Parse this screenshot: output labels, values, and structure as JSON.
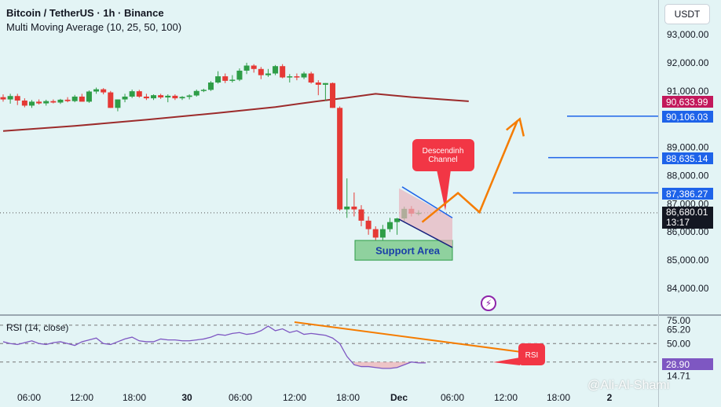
{
  "header": {
    "title": "Bitcoin / TetherUS · 1h · Binance",
    "indicator": "Multi Moving Average (10, 25, 50, 100)",
    "currency_button": "USDT"
  },
  "watermark": "@Ali-Al-Shami",
  "chart_data": [
    {
      "type": "candlestick",
      "title": "Bitcoin / TetherUS · 1h · Binance",
      "ylim": [
        83500,
        93700
      ],
      "y_ticks": [
        "93,000.00",
        "92,000.00",
        "91,000.00",
        "89,000.00",
        "88,000.00",
        "87,000.00",
        "86,000.00",
        "85,000.00",
        "84,000.00"
      ],
      "x_ticks": [
        "06:00",
        "12:00",
        "18:00",
        "30",
        "06:00",
        "12:00",
        "18:00",
        "Dec",
        "06:00",
        "12:00",
        "18:00",
        "2"
      ],
      "candles": [
        {
          "o": 90780,
          "h": 90880,
          "l": 90620,
          "c": 90700
        },
        {
          "o": 90700,
          "h": 90900,
          "l": 90550,
          "c": 90820
        },
        {
          "o": 90820,
          "h": 90900,
          "l": 90500,
          "c": 90660
        },
        {
          "o": 90660,
          "h": 90740,
          "l": 90420,
          "c": 90480
        },
        {
          "o": 90480,
          "h": 90680,
          "l": 90400,
          "c": 90620
        },
        {
          "o": 90620,
          "h": 90700,
          "l": 90520,
          "c": 90560
        },
        {
          "o": 90560,
          "h": 90690,
          "l": 90480,
          "c": 90640
        },
        {
          "o": 90640,
          "h": 90700,
          "l": 90560,
          "c": 90590
        },
        {
          "o": 90590,
          "h": 90720,
          "l": 90540,
          "c": 90690
        },
        {
          "o": 90690,
          "h": 90780,
          "l": 90600,
          "c": 90640
        },
        {
          "o": 90640,
          "h": 90860,
          "l": 90600,
          "c": 90800
        },
        {
          "o": 90800,
          "h": 90900,
          "l": 90680,
          "c": 90620
        },
        {
          "o": 90620,
          "h": 91020,
          "l": 90580,
          "c": 90980
        },
        {
          "o": 90980,
          "h": 91120,
          "l": 90900,
          "c": 91060
        },
        {
          "o": 91060,
          "h": 91100,
          "l": 90880,
          "c": 90950
        },
        {
          "o": 90950,
          "h": 91000,
          "l": 90400,
          "c": 90400
        },
        {
          "o": 90400,
          "h": 90700,
          "l": 90280,
          "c": 90700
        },
        {
          "o": 90700,
          "h": 90900,
          "l": 90600,
          "c": 90800
        },
        {
          "o": 90800,
          "h": 91050,
          "l": 90750,
          "c": 90990
        },
        {
          "o": 90990,
          "h": 91040,
          "l": 90760,
          "c": 90800
        },
        {
          "o": 90800,
          "h": 90900,
          "l": 90680,
          "c": 90740
        },
        {
          "o": 90740,
          "h": 90880,
          "l": 90680,
          "c": 90850
        },
        {
          "o": 90850,
          "h": 90900,
          "l": 90720,
          "c": 90770
        },
        {
          "o": 90770,
          "h": 90880,
          "l": 90600,
          "c": 90830
        },
        {
          "o": 90830,
          "h": 90880,
          "l": 90680,
          "c": 90740
        },
        {
          "o": 90740,
          "h": 90820,
          "l": 90680,
          "c": 90790
        },
        {
          "o": 90790,
          "h": 90880,
          "l": 90700,
          "c": 90840
        },
        {
          "o": 90840,
          "h": 91050,
          "l": 90800,
          "c": 91000
        },
        {
          "o": 91000,
          "h": 91080,
          "l": 90960,
          "c": 91040
        },
        {
          "o": 91040,
          "h": 91350,
          "l": 91000,
          "c": 91300
        },
        {
          "o": 91300,
          "h": 91700,
          "l": 91260,
          "c": 91520
        },
        {
          "o": 91520,
          "h": 91620,
          "l": 91280,
          "c": 91360
        },
        {
          "o": 91360,
          "h": 91560,
          "l": 91300,
          "c": 91400
        },
        {
          "o": 91400,
          "h": 91800,
          "l": 91350,
          "c": 91720
        },
        {
          "o": 91720,
          "h": 92000,
          "l": 91600,
          "c": 91900
        },
        {
          "o": 91900,
          "h": 91950,
          "l": 91650,
          "c": 91780
        },
        {
          "o": 91780,
          "h": 91850,
          "l": 91420,
          "c": 91560
        },
        {
          "o": 91560,
          "h": 91780,
          "l": 91500,
          "c": 91620
        },
        {
          "o": 91620,
          "h": 91920,
          "l": 91560,
          "c": 91880
        },
        {
          "o": 91880,
          "h": 91950,
          "l": 91450,
          "c": 91480
        },
        {
          "o": 91480,
          "h": 91600,
          "l": 91300,
          "c": 91520
        },
        {
          "o": 91520,
          "h": 91620,
          "l": 91380,
          "c": 91480
        },
        {
          "o": 91480,
          "h": 91680,
          "l": 91420,
          "c": 91620
        },
        {
          "o": 91620,
          "h": 91680,
          "l": 91260,
          "c": 91300
        },
        {
          "o": 91300,
          "h": 91380,
          "l": 90850,
          "c": 91220
        },
        {
          "o": 91220,
          "h": 91280,
          "l": 90650,
          "c": 91280
        },
        {
          "o": 91280,
          "h": 91300,
          "l": 90400,
          "c": 90400
        },
        {
          "o": 90400,
          "h": 90450,
          "l": 86750,
          "c": 86800
        },
        {
          "o": 86800,
          "h": 87900,
          "l": 86500,
          "c": 86900
        },
        {
          "o": 86900,
          "h": 87400,
          "l": 86550,
          "c": 86800
        },
        {
          "o": 86800,
          "h": 86950,
          "l": 86200,
          "c": 86400
        },
        {
          "o": 86400,
          "h": 86550,
          "l": 85900,
          "c": 86100
        },
        {
          "o": 86100,
          "h": 86200,
          "l": 85700,
          "c": 85800
        },
        {
          "o": 85800,
          "h": 86250,
          "l": 85700,
          "c": 86100
        },
        {
          "o": 86100,
          "h": 86500,
          "l": 86000,
          "c": 86350
        },
        {
          "o": 86350,
          "h": 86500,
          "l": 85900,
          "c": 86480
        },
        {
          "o": 86480,
          "h": 86900,
          "l": 86380,
          "c": 86820
        },
        {
          "o": 86820,
          "h": 86920,
          "l": 86550,
          "c": 86650
        },
        {
          "o": 86650,
          "h": 86770,
          "l": 86580,
          "c": 86680
        }
      ],
      "moving_average": [
        {
          "x": 0,
          "y": 89580
        },
        {
          "x": 10,
          "y": 89760
        },
        {
          "x": 20,
          "y": 89980
        },
        {
          "x": 30,
          "y": 90220
        },
        {
          "x": 38,
          "y": 90430
        },
        {
          "x": 44,
          "y": 90640
        },
        {
          "x": 48,
          "y": 90760
        },
        {
          "x": 52,
          "y": 90900
        },
        {
          "x": 57,
          "y": 90780
        },
        {
          "x": 65,
          "y": 90633.99
        }
      ],
      "price_tags": [
        {
          "label": "90,633.99",
          "color": "#c2185b",
          "price": 90633.99
        },
        {
          "label": "90,106.03",
          "color": "#1e63e9",
          "price": 90106.03
        },
        {
          "label": "88,635.14",
          "color": "#1e63e9",
          "price": 88635.14
        },
        {
          "label": "87,386.27",
          "color": "#1e63e9",
          "price": 87386.27
        },
        {
          "label": "86,680.01",
          "sub": "13:17",
          "color": "#131722",
          "price": 86680.01
        }
      ],
      "horizontal_levels": [
        90106.03,
        88635.14,
        87386.27
      ],
      "projection": [
        {
          "x": 58.5,
          "y": 86350
        },
        {
          "x": 63.5,
          "y": 87380
        },
        {
          "x": 66.5,
          "y": 86700
        },
        {
          "x": 71.8,
          "y": 89950
        }
      ],
      "annotations": {
        "channel_label": "Descendinh\nChannel",
        "support_label": "Support Area",
        "support_zone": [
          85000,
          85700
        ]
      }
    },
    {
      "type": "line",
      "title": "RSI (14, close)",
      "ylim": [
        10,
        75
      ],
      "y_ticks": [
        "75.00",
        "65.20",
        "50.00",
        "28.90",
        "14.71"
      ],
      "levels": [
        70,
        50,
        30
      ],
      "current_value": "28.90",
      "values": [
        52,
        50,
        49,
        51,
        53,
        50,
        49,
        51,
        52,
        50,
        48,
        52,
        54,
        56,
        50,
        49,
        52,
        55,
        57,
        53,
        52,
        52,
        55,
        54,
        54,
        53,
        53,
        54,
        55,
        57,
        60,
        59,
        61,
        62,
        60,
        61,
        64,
        69,
        64,
        66,
        62,
        64,
        60,
        61,
        60,
        59,
        56,
        50,
        36,
        27,
        25,
        25,
        24,
        23,
        23,
        24,
        27,
        30,
        29,
        29
      ],
      "trend_label": "RSI"
    }
  ]
}
